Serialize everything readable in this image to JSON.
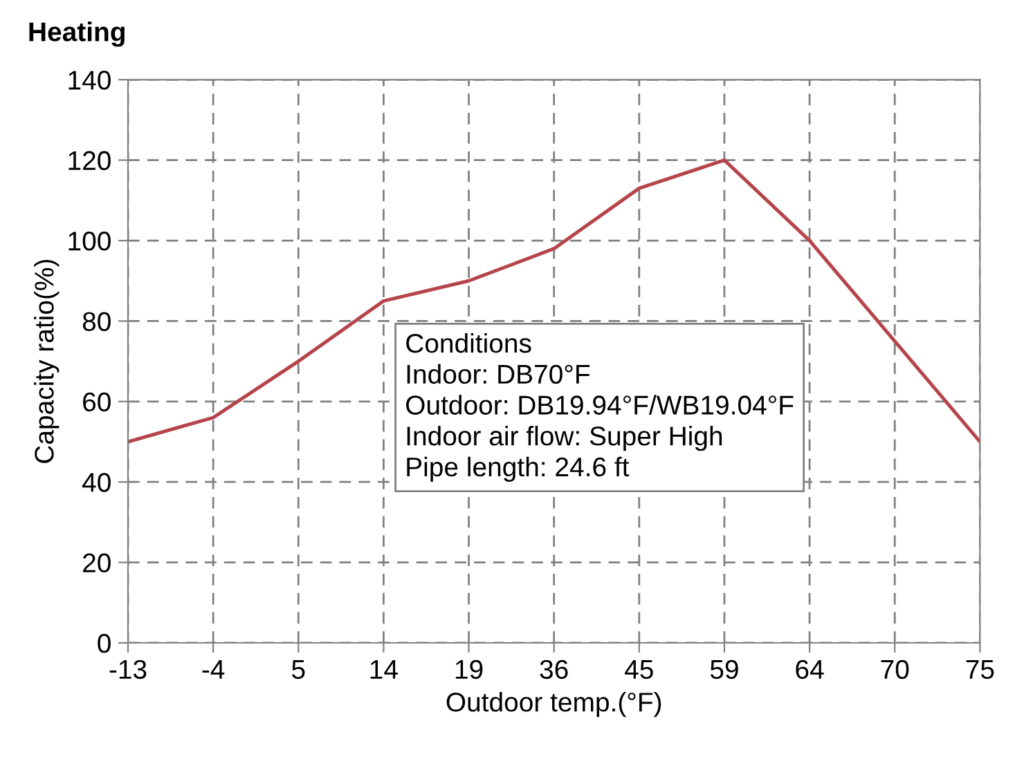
{
  "chart_data": {
    "type": "line",
    "title": "Heating",
    "xlabel": "Outdoor temp.(°F)",
    "ylabel": "Capacity ratio(%)",
    "categories": [
      "-13",
      "-4",
      "5",
      "14",
      "19",
      "36",
      "45",
      "59",
      "64",
      "70",
      "75"
    ],
    "series": [
      {
        "color": "#b5444b",
        "values": [
          50,
          56,
          70,
          85,
          90,
          98,
          113,
          120,
          100,
          75,
          50
        ]
      }
    ],
    "ylim": [
      0,
      140
    ],
    "yticks": [
      0,
      20,
      40,
      60,
      80,
      100,
      120,
      140
    ],
    "grid": true,
    "marker": "none",
    "line_style": "solid",
    "annotations": [
      "Conditions",
      "Indoor: DB70°F",
      "Outdoor: DB19.94°F/WB19.04°F",
      "Indoor air flow: Super High",
      "Pipe length: 24.6 ft"
    ]
  }
}
